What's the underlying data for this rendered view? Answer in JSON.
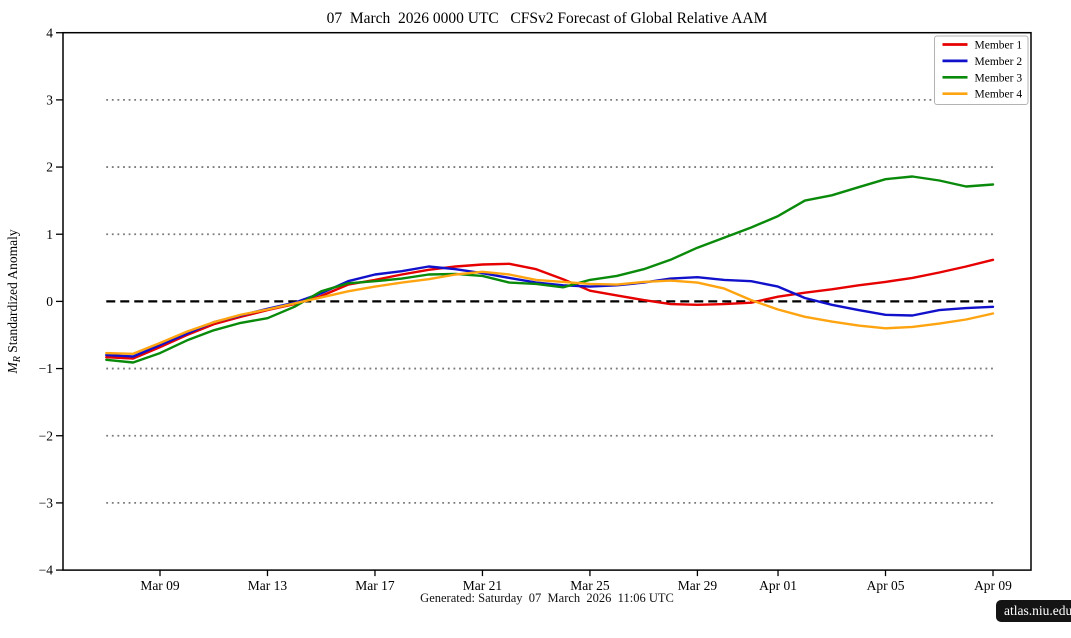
{
  "header": {
    "title": "07  March  2026 0000 UTC   CFSv2 Forecast of Global Relative AAM"
  },
  "footer": {
    "generated": "Generated: Saturday  07  March  2026  11:06 UTC",
    "site_badge": "atlas.niu.edu"
  },
  "chart_data": {
    "type": "line",
    "title": "07  March  2026 0000 UTC   CFSv2 Forecast of Global Relative AAM",
    "xlabel": "",
    "ylabel": "M_R Standardized Anomaly",
    "ylabel_parts": {
      "italic": "M",
      "sub": "R",
      "rest": " Standardized Anomaly"
    },
    "ylim": [
      -4,
      4
    ],
    "yticks": [
      -4,
      -3,
      -2,
      -1,
      0,
      1,
      2,
      3,
      4
    ],
    "grid_dotted_y": [
      -3,
      -2,
      -1,
      1,
      2,
      3
    ],
    "zero_line": {
      "value": 0,
      "style": "dashed",
      "color": "#000000"
    },
    "grid_color": "#7a7a7a",
    "legend_position": "upper right",
    "xticks": [
      {
        "day": 2,
        "label": "Mar 09"
      },
      {
        "day": 6,
        "label": "Mar 13"
      },
      {
        "day": 10,
        "label": "Mar 17"
      },
      {
        "day": 14,
        "label": "Mar 21"
      },
      {
        "day": 18,
        "label": "Mar 25"
      },
      {
        "day": 22,
        "label": "Mar 29"
      },
      {
        "day": 25,
        "label": "Apr 01"
      },
      {
        "day": 29,
        "label": "Apr 05"
      },
      {
        "day": 33,
        "label": "Apr 09"
      }
    ],
    "dates": [
      "Mar 07",
      "Mar 08",
      "Mar 09",
      "Mar 10",
      "Mar 11",
      "Mar 12",
      "Mar 13",
      "Mar 14",
      "Mar 15",
      "Mar 16",
      "Mar 17",
      "Mar 18",
      "Mar 19",
      "Mar 20",
      "Mar 21",
      "Mar 22",
      "Mar 23",
      "Mar 24",
      "Mar 25",
      "Mar 26",
      "Mar 27",
      "Mar 28",
      "Mar 29",
      "Mar 30",
      "Mar 31",
      "Apr 01",
      "Apr 02",
      "Apr 03",
      "Apr 04",
      "Apr 05",
      "Apr 06",
      "Apr 07",
      "Apr 08",
      "Apr 09"
    ],
    "series": [
      {
        "name": "Member 1",
        "color": "#e60000",
        "values": [
          -0.83,
          -0.85,
          -0.68,
          -0.5,
          -0.34,
          -0.23,
          -0.13,
          -0.04,
          0.08,
          0.25,
          0.32,
          0.4,
          0.47,
          0.52,
          0.55,
          0.56,
          0.48,
          0.33,
          0.16,
          0.09,
          0.02,
          -0.04,
          -0.05,
          -0.04,
          -0.02,
          0.07,
          0.13,
          0.18,
          0.24,
          0.29,
          0.35,
          0.43,
          0.52,
          0.62
        ]
      },
      {
        "name": "Member 2",
        "color": "#1111cc",
        "values": [
          -0.8,
          -0.82,
          -0.65,
          -0.48,
          -0.31,
          -0.21,
          -0.11,
          -0.02,
          0.12,
          0.3,
          0.4,
          0.45,
          0.52,
          0.48,
          0.42,
          0.35,
          0.28,
          0.24,
          0.22,
          0.24,
          0.28,
          0.34,
          0.36,
          0.32,
          0.3,
          0.22,
          0.05,
          -0.05,
          -0.13,
          -0.2,
          -0.21,
          -0.13,
          -0.1,
          -0.08
        ]
      },
      {
        "name": "Member 3",
        "color": "#0a8a0a",
        "values": [
          -0.87,
          -0.91,
          -0.77,
          -0.58,
          -0.43,
          -0.32,
          -0.25,
          -0.08,
          0.15,
          0.27,
          0.3,
          0.34,
          0.4,
          0.41,
          0.38,
          0.28,
          0.26,
          0.21,
          0.32,
          0.38,
          0.48,
          0.62,
          0.8,
          0.95,
          1.1,
          1.27,
          1.5,
          1.58,
          1.7,
          1.82,
          1.86,
          1.8,
          1.71,
          1.74
        ]
      },
      {
        "name": "Member 4",
        "color": "#ffa411",
        "values": [
          -0.77,
          -0.78,
          -0.62,
          -0.45,
          -0.31,
          -0.2,
          -0.12,
          -0.03,
          0.06,
          0.15,
          0.22,
          0.28,
          0.33,
          0.4,
          0.44,
          0.4,
          0.32,
          0.29,
          0.26,
          0.25,
          0.29,
          0.31,
          0.28,
          0.19,
          0.02,
          -0.12,
          -0.23,
          -0.3,
          -0.36,
          -0.4,
          -0.38,
          -0.33,
          -0.27,
          -0.18
        ]
      }
    ]
  }
}
